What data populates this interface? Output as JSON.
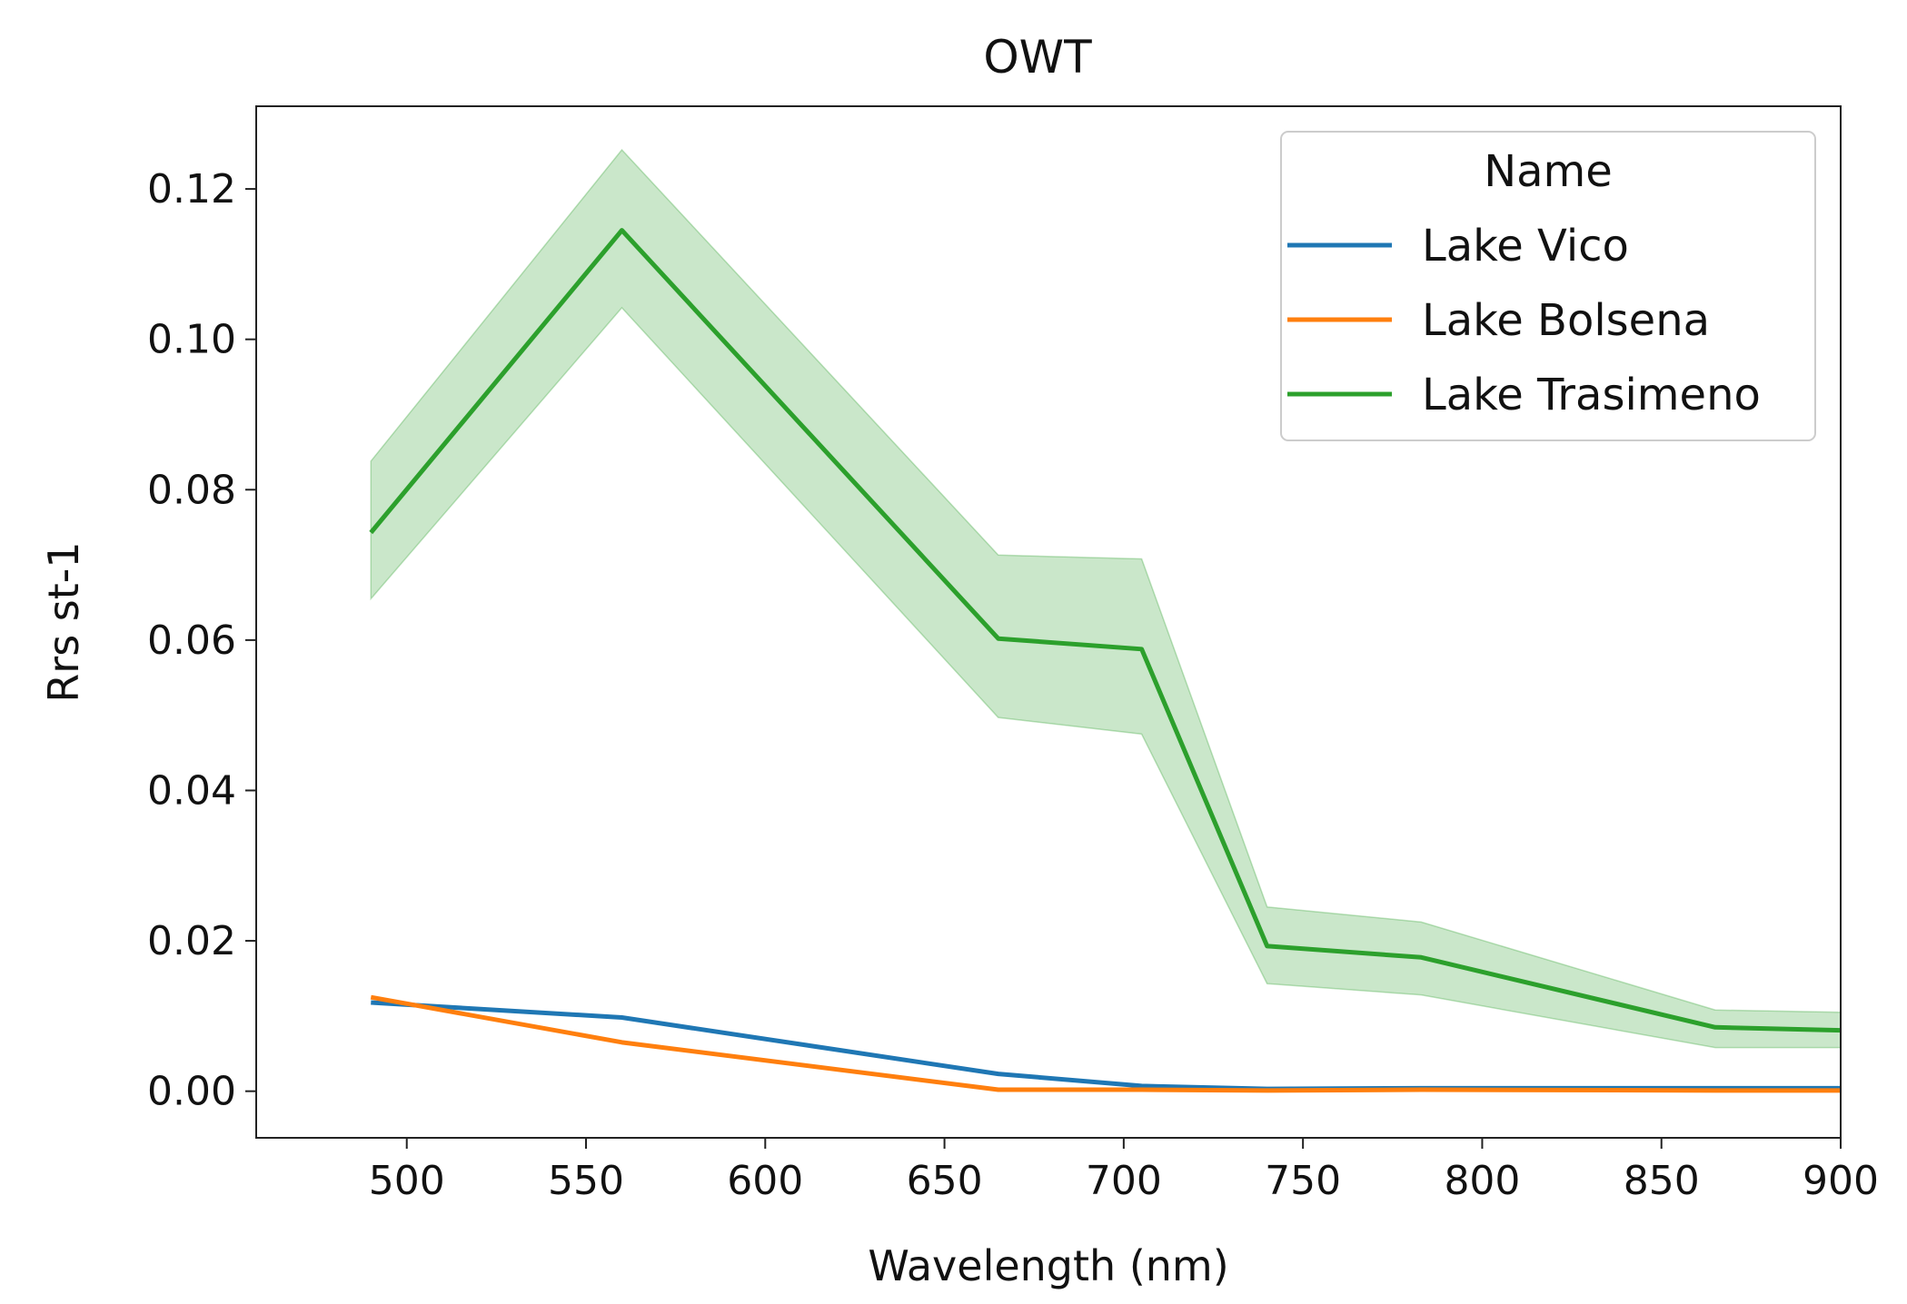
{
  "chart_data": {
    "type": "line",
    "title": "OWT",
    "xlabel": "Wavelength (nm)",
    "ylabel": "Rrs st-1",
    "xlim": [
      458,
      900
    ],
    "ylim": [
      -0.0062,
      0.131
    ],
    "xticks": [
      500,
      550,
      600,
      650,
      700,
      750,
      800,
      850,
      900
    ],
    "yticks": [
      0.0,
      0.02,
      0.04,
      0.06,
      0.08,
      0.1,
      0.12
    ],
    "ytick_labels": [
      "0.00",
      "0.02",
      "0.04",
      "0.06",
      "0.08",
      "0.10",
      "0.12"
    ],
    "x": [
      490,
      560,
      665,
      705,
      740,
      783,
      865,
      900
    ],
    "legend": {
      "title": "Name",
      "position": "top-right"
    },
    "series": [
      {
        "name": "Lake Vico",
        "color": "#1f77b4",
        "values": [
          0.0118,
          0.0098,
          0.0023,
          0.0007,
          0.0003,
          0.0004,
          0.0004,
          0.0004
        ]
      },
      {
        "name": "Lake Bolsena",
        "color": "#ff7f0e",
        "values": [
          0.0125,
          0.0065,
          0.0002,
          0.0002,
          0.0001,
          0.0002,
          0.0001,
          0.0001
        ]
      },
      {
        "name": "Lake Trasimeno",
        "color": "#2ca02c",
        "values": [
          0.0743,
          0.1145,
          0.0602,
          0.0588,
          0.0193,
          0.0178,
          0.0085,
          0.0081
        ],
        "band_low": [
          0.0655,
          0.1042,
          0.0497,
          0.0475,
          0.0143,
          0.0128,
          0.0058,
          0.0058
        ],
        "band_high": [
          0.0838,
          0.1252,
          0.0713,
          0.0708,
          0.0245,
          0.0225,
          0.0108,
          0.0105
        ]
      }
    ]
  }
}
